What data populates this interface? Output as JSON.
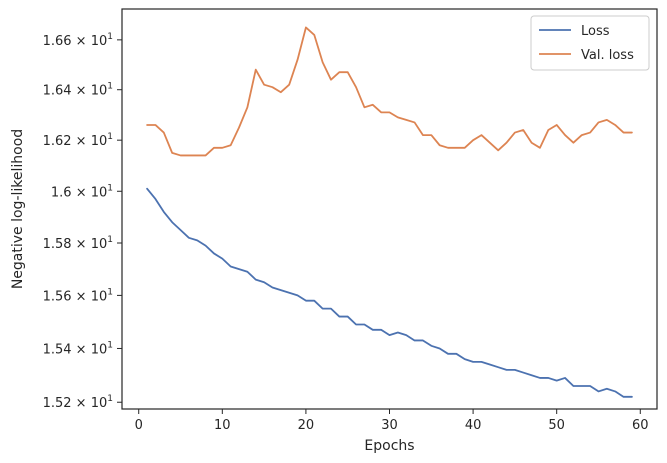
{
  "chart_data": {
    "type": "line",
    "xlabel": "Epochs",
    "ylabel": "Negative log-likelihood",
    "xlim": [
      -2.0,
      62.0
    ],
    "ylim": [
      15.175,
      16.725
    ],
    "x_ticks": [
      0,
      10,
      20,
      30,
      40,
      50,
      60
    ],
    "x_tick_labels": [
      "0",
      "10",
      "20",
      "30",
      "40",
      "50",
      "60"
    ],
    "y_ticks": [
      15.2,
      15.4,
      15.6,
      15.8,
      16.0,
      16.2,
      16.4,
      16.6
    ],
    "y_tick_labels": [
      {
        "mant": "1.52",
        "exp": "1"
      },
      {
        "mant": "1.54",
        "exp": "1"
      },
      {
        "mant": "1.56",
        "exp": "1"
      },
      {
        "mant": "1.58",
        "exp": "1"
      },
      {
        "mant": "1.6",
        "exp": "1"
      },
      {
        "mant": "1.62",
        "exp": "1"
      },
      {
        "mant": "1.64",
        "exp": "1"
      },
      {
        "mant": "1.66",
        "exp": "1"
      }
    ],
    "y_scale": "log",
    "grid": false,
    "legend": "top-right",
    "series": [
      {
        "name": "Loss",
        "color": "#4c72b0",
        "x": [
          1,
          2,
          3,
          4,
          5,
          6,
          7,
          8,
          9,
          10,
          11,
          12,
          13,
          14,
          15,
          16,
          17,
          18,
          19,
          20,
          21,
          22,
          23,
          24,
          25,
          26,
          27,
          28,
          29,
          30,
          31,
          32,
          33,
          34,
          35,
          36,
          37,
          38,
          39,
          40,
          41,
          42,
          43,
          44,
          45,
          46,
          47,
          48,
          49,
          50,
          51,
          52,
          53,
          54,
          55,
          56,
          57,
          58,
          59
        ],
        "values": [
          16.01,
          15.97,
          15.92,
          15.88,
          15.85,
          15.82,
          15.81,
          15.79,
          15.76,
          15.74,
          15.71,
          15.7,
          15.69,
          15.66,
          15.65,
          15.63,
          15.62,
          15.61,
          15.6,
          15.58,
          15.58,
          15.55,
          15.55,
          15.52,
          15.52,
          15.49,
          15.49,
          15.47,
          15.47,
          15.45,
          15.46,
          15.45,
          15.43,
          15.43,
          15.41,
          15.4,
          15.38,
          15.38,
          15.36,
          15.35,
          15.35,
          15.34,
          15.33,
          15.32,
          15.32,
          15.31,
          15.3,
          15.29,
          15.29,
          15.28,
          15.29,
          15.26,
          15.26,
          15.26,
          15.24,
          15.25,
          15.24,
          15.22,
          15.22
        ]
      },
      {
        "name": "Val. loss",
        "color": "#dd8452",
        "x": [
          1,
          2,
          3,
          4,
          5,
          6,
          7,
          8,
          9,
          10,
          11,
          12,
          13,
          14,
          15,
          16,
          17,
          18,
          19,
          20,
          21,
          22,
          23,
          24,
          25,
          26,
          27,
          28,
          29,
          30,
          31,
          32,
          33,
          34,
          35,
          36,
          37,
          38,
          39,
          40,
          41,
          42,
          43,
          44,
          45,
          46,
          47,
          48,
          49,
          50,
          51,
          52,
          53,
          54,
          55,
          56,
          57,
          58,
          59
        ],
        "values": [
          16.26,
          16.26,
          16.23,
          16.15,
          16.14,
          16.14,
          16.14,
          16.14,
          16.17,
          16.17,
          16.18,
          16.25,
          16.33,
          16.48,
          16.42,
          16.41,
          16.39,
          16.42,
          16.52,
          16.65,
          16.62,
          16.51,
          16.44,
          16.47,
          16.47,
          16.41,
          16.33,
          16.34,
          16.31,
          16.31,
          16.29,
          16.28,
          16.27,
          16.22,
          16.22,
          16.18,
          16.17,
          16.17,
          16.17,
          16.2,
          16.22,
          16.19,
          16.16,
          16.19,
          16.23,
          16.24,
          16.19,
          16.17,
          16.24,
          16.26,
          16.22,
          16.19,
          16.22,
          16.23,
          16.27,
          16.28,
          16.26,
          16.23,
          16.23
        ]
      }
    ]
  }
}
